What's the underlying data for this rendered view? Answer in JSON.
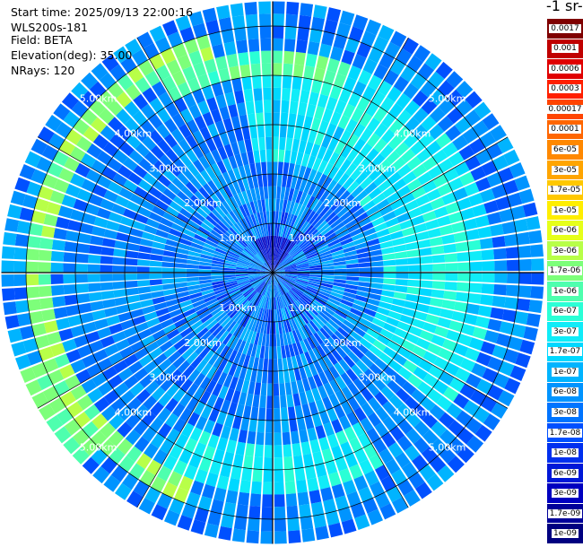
{
  "info": {
    "start_time": "Start time: 2025/09/13 22:00:16",
    "instrument": "WLS200s-181",
    "field": "Field: BETA",
    "elevation": "Elevation(deg): 35.00",
    "nrays": "NRays: 120"
  },
  "colorbar": {
    "title": "-1 sr-",
    "labels": [
      "0.0017",
      "0.001",
      "0.0006",
      "0.0003",
      "0.00017",
      "0.0001",
      "6e-05",
      "3e-05",
      "1.7e-05",
      "1e-05",
      "6e-06",
      "3e-06",
      "1.7e-06",
      "1e-06",
      "6e-07",
      "3e-07",
      "1.7e-07",
      "1e-07",
      "6e-08",
      "3e-08",
      "1.7e-08",
      "1e-08",
      "6e-09",
      "3e-09",
      "1.7e-09",
      "1e-09"
    ],
    "colors": [
      "#7f0000",
      "#c00000",
      "#e00000",
      "#ff2000",
      "#ff4400",
      "#ff6600",
      "#ff8800",
      "#ffa500",
      "#ffc800",
      "#ffee00",
      "#e6ff1a",
      "#b8ff48",
      "#7dff7a",
      "#4effae",
      "#2affd6",
      "#10ecf8",
      "#00d8ff",
      "#00b4ff",
      "#0094ff",
      "#0074ff",
      "#0050ff",
      "#0030ef",
      "#0018d8",
      "#0000c0",
      "#00009a",
      "#000080"
    ]
  },
  "chart_data": {
    "type": "heatmap",
    "projection": "polar",
    "field": "BETA",
    "nrays": 120,
    "elevation_deg": 35.0,
    "range_rings_km": [
      1,
      2,
      3,
      4,
      5
    ],
    "ring_labels": [
      "1.00km",
      "2.00km",
      "3.00km",
      "4.00km",
      "5.00km"
    ],
    "max_range_km": 5.5,
    "spoke_angles_deg": [
      0,
      30,
      60,
      90,
      120,
      150,
      180,
      210,
      240,
      270,
      300,
      330
    ],
    "gates_per_ray": 22,
    "features": {
      "high_backscatter_ring_km": 4.7,
      "high_backscatter_sector_deg": [
        200,
        345
      ],
      "outer_ring_km": 5.3,
      "inner_enhanced_zone_km": [
        2.3,
        4.6
      ],
      "inner_enhanced_sector_deg": [
        350,
        130
      ]
    }
  }
}
